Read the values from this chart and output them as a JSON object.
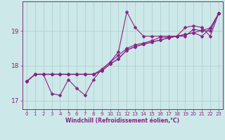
{
  "xlabel": "Windchill (Refroidissement éolien,°C)",
  "background_color": "#cde8e8",
  "grid_color": "#a8cccc",
  "line_color": "#882288",
  "xlim": [
    -0.5,
    23.5
  ],
  "ylim": [
    16.75,
    19.85
  ],
  "yticks": [
    17,
    18,
    19
  ],
  "xticks": [
    0,
    1,
    2,
    3,
    4,
    5,
    6,
    7,
    8,
    9,
    10,
    11,
    12,
    13,
    14,
    15,
    16,
    17,
    18,
    19,
    20,
    21,
    22,
    23
  ],
  "line1_y": [
    17.55,
    17.75,
    17.75,
    17.2,
    17.15,
    17.6,
    17.35,
    17.15,
    17.6,
    17.9,
    18.1,
    18.4,
    19.55,
    19.1,
    18.85,
    18.85,
    18.85,
    18.85,
    18.85,
    19.1,
    19.15,
    19.1,
    18.85,
    19.5
  ],
  "line2_y": [
    17.55,
    17.75,
    17.75,
    17.75,
    17.75,
    17.75,
    17.75,
    17.75,
    17.75,
    17.85,
    18.05,
    18.2,
    18.45,
    18.55,
    18.62,
    18.68,
    18.74,
    18.8,
    18.85,
    18.9,
    18.95,
    19.02,
    19.08,
    19.5
  ],
  "line3_y": [
    17.55,
    17.75,
    17.75,
    17.75,
    17.75,
    17.75,
    17.75,
    17.75,
    17.75,
    17.85,
    18.05,
    18.2,
    18.45,
    18.55,
    18.62,
    18.68,
    18.74,
    18.8,
    18.85,
    18.9,
    18.95,
    18.85,
    19.08,
    19.5
  ],
  "line4_y": [
    17.55,
    17.75,
    17.75,
    17.75,
    17.75,
    17.75,
    17.75,
    17.75,
    17.75,
    17.9,
    18.1,
    18.3,
    18.5,
    18.6,
    18.65,
    18.72,
    18.82,
    18.82,
    18.85,
    18.85,
    19.05,
    19.0,
    19.0,
    19.5
  ]
}
